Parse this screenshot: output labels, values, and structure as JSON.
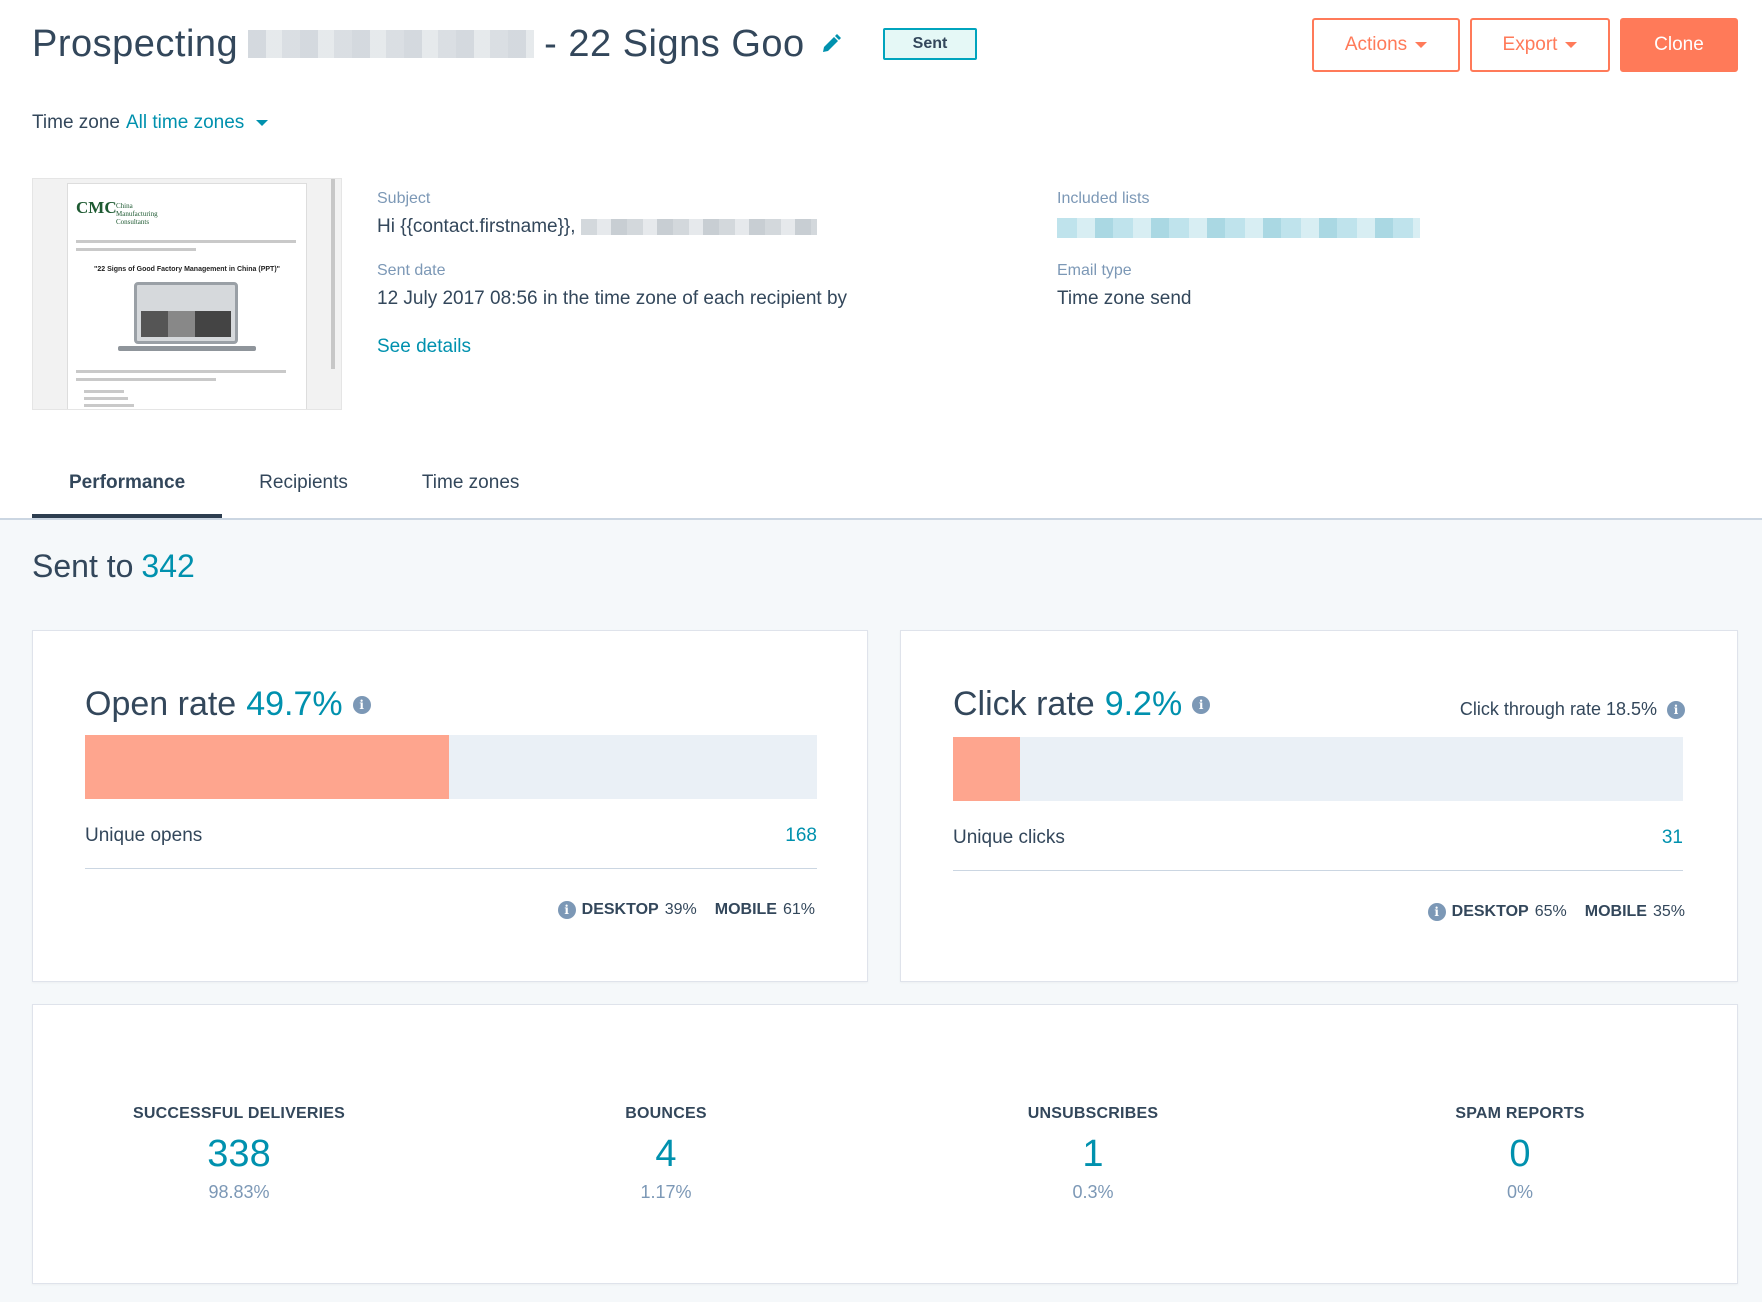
{
  "header": {
    "title_prefix": "Prospecting",
    "title_suffix": "- 22 Signs Goo",
    "status_badge": "Sent",
    "actions_label": "Actions",
    "export_label": "Export",
    "clone_label": "Clone"
  },
  "timezone": {
    "label": "Time zone",
    "value": "All time zones"
  },
  "preview": {
    "logo_text": "CMC",
    "logo_sub": "China Manufacturing Consultants",
    "heading": "\"22 Signs of Good Factory Management in China (PPT)\""
  },
  "details": {
    "subject_label": "Subject",
    "subject_value": "Hi {{contact.firstname}},",
    "sent_date_label": "Sent date",
    "sent_date_value": "12 July 2017 08:56 in the time zone of each recipient by",
    "see_details": "See details",
    "lists_label": "Included lists",
    "email_type_label": "Email type",
    "email_type_value": "Time zone send"
  },
  "tabs": [
    {
      "label": "Performance",
      "active": true
    },
    {
      "label": "Recipients",
      "active": false
    },
    {
      "label": "Time zones",
      "active": false
    }
  ],
  "sent_to": {
    "label": "Sent to",
    "count": "342"
  },
  "open_card": {
    "title": "Open rate",
    "rate": "49.7%",
    "rate_fraction": 0.497,
    "unique_label": "Unique opens",
    "unique_value": "168",
    "desktop_label": "DESKTOP",
    "desktop_value": "39%",
    "mobile_label": "MOBILE",
    "mobile_value": "61%"
  },
  "click_card": {
    "title": "Click rate",
    "rate": "9.2%",
    "rate_fraction": 0.092,
    "ctr_text": "Click through rate 18.5%",
    "unique_label": "Unique clicks",
    "unique_value": "31",
    "desktop_label": "DESKTOP",
    "desktop_value": "65%",
    "mobile_label": "MOBILE",
    "mobile_value": "35%"
  },
  "stats": [
    {
      "label": "SUCCESSFUL DELIVERIES",
      "value": "338",
      "percent": "98.83%"
    },
    {
      "label": "BOUNCES",
      "value": "4",
      "percent": "1.17%"
    },
    {
      "label": "UNSUBSCRIBES",
      "value": "1",
      "percent": "0.3%"
    },
    {
      "label": "SPAM REPORTS",
      "value": "0",
      "percent": "0%"
    }
  ],
  "colors": {
    "accent": "#0091ae",
    "brand": "#ff7a59",
    "bar_fill": "#fea58e",
    "bar_track": "#eaf0f6"
  }
}
